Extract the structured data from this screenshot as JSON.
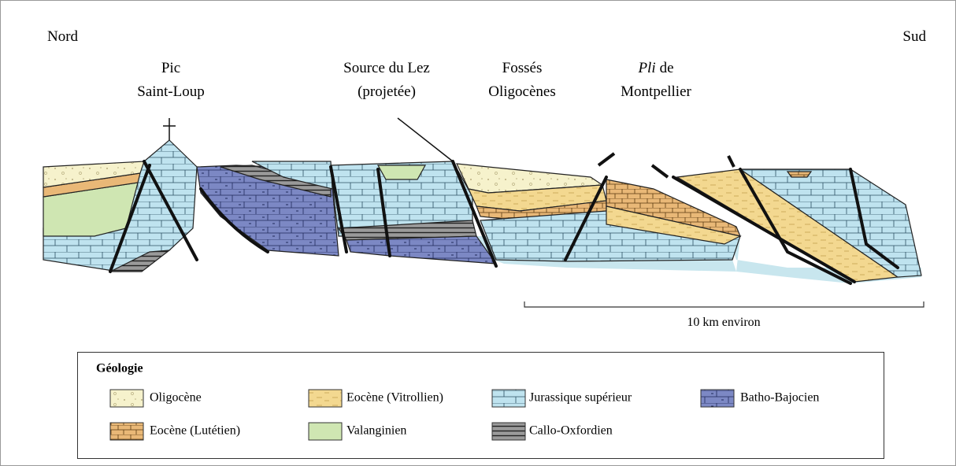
{
  "directions": {
    "north": "Nord",
    "south": "Sud"
  },
  "labels": [
    {
      "lines": [
        "Pic",
        "Saint-Loup"
      ]
    },
    {
      "lines": [
        "Source du Lez",
        "(projetée)"
      ]
    },
    {
      "lines": [
        "Fossés",
        "Oligocènes"
      ]
    },
    {
      "italic": "Pli",
      "lines": [
        "de",
        "Montpellier"
      ]
    }
  ],
  "scale": "10 km environ",
  "legend": {
    "title": "Géologie",
    "items": [
      "Oligocène",
      "Eocène (Vitrollien)",
      "Jurassique supérieur",
      "Batho-Bajocien",
      "Eocène (Lutétien)",
      "Valanginien",
      "Callo-Oxfordien"
    ]
  }
}
